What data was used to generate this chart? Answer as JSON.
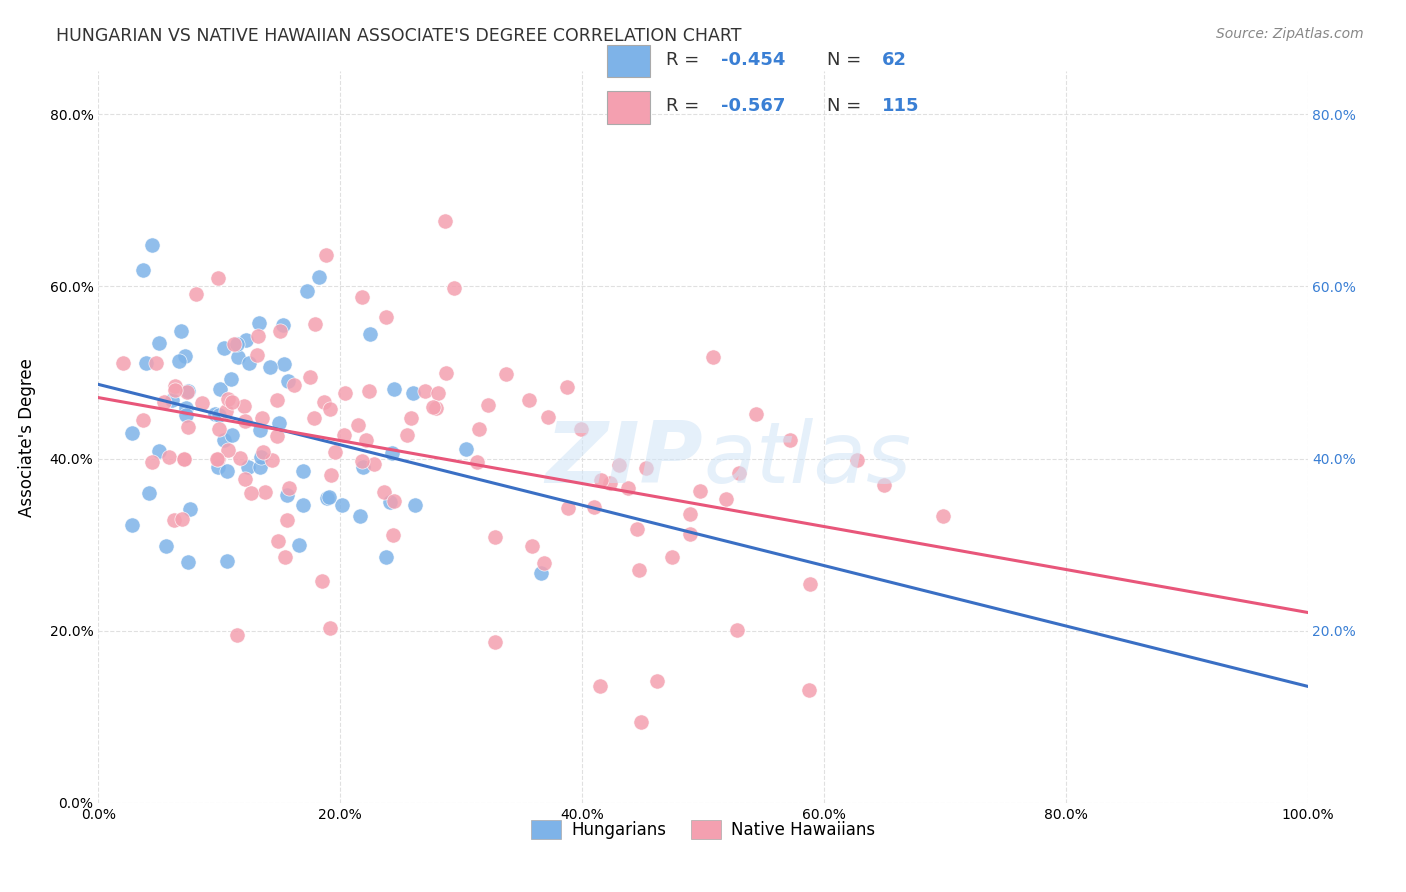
{
  "title": "HUNGARIAN VS NATIVE HAWAIIAN ASSOCIATE'S DEGREE CORRELATION CHART",
  "source": "Source: ZipAtlas.com",
  "ylabel": "Associate's Degree",
  "xlabel": "",
  "xlim": [
    0,
    1.0
  ],
  "ylim": [
    0,
    0.85
  ],
  "x_tick_labels": [
    "0.0%",
    "20.0%",
    "40.0%",
    "60.0%",
    "80.0%",
    "100.0%"
  ],
  "x_tick_values": [
    0.0,
    0.2,
    0.4,
    0.6,
    0.8,
    1.0
  ],
  "y_tick_labels_left": [
    "",
    "20.0%",
    "40.0%",
    "60.0%",
    "80.0%"
  ],
  "y_tick_labels_right": [
    "20.0%",
    "40.0%",
    "60.0%",
    "80.0%"
  ],
  "legend_blue_label": "R = -0.454   N =  62",
  "legend_pink_label": "R = -0.567   N = 115",
  "blue_color": "#7eb3e8",
  "pink_color": "#f4a0b0",
  "line_blue": "#3a6fc4",
  "line_pink": "#e8567a",
  "watermark": "ZIPatlas",
  "blue_R": -0.454,
  "blue_N": 62,
  "pink_R": -0.567,
  "pink_N": 115,
  "blue_seed": 42,
  "pink_seed": 99,
  "background_color": "#ffffff",
  "grid_color": "#dddddd"
}
